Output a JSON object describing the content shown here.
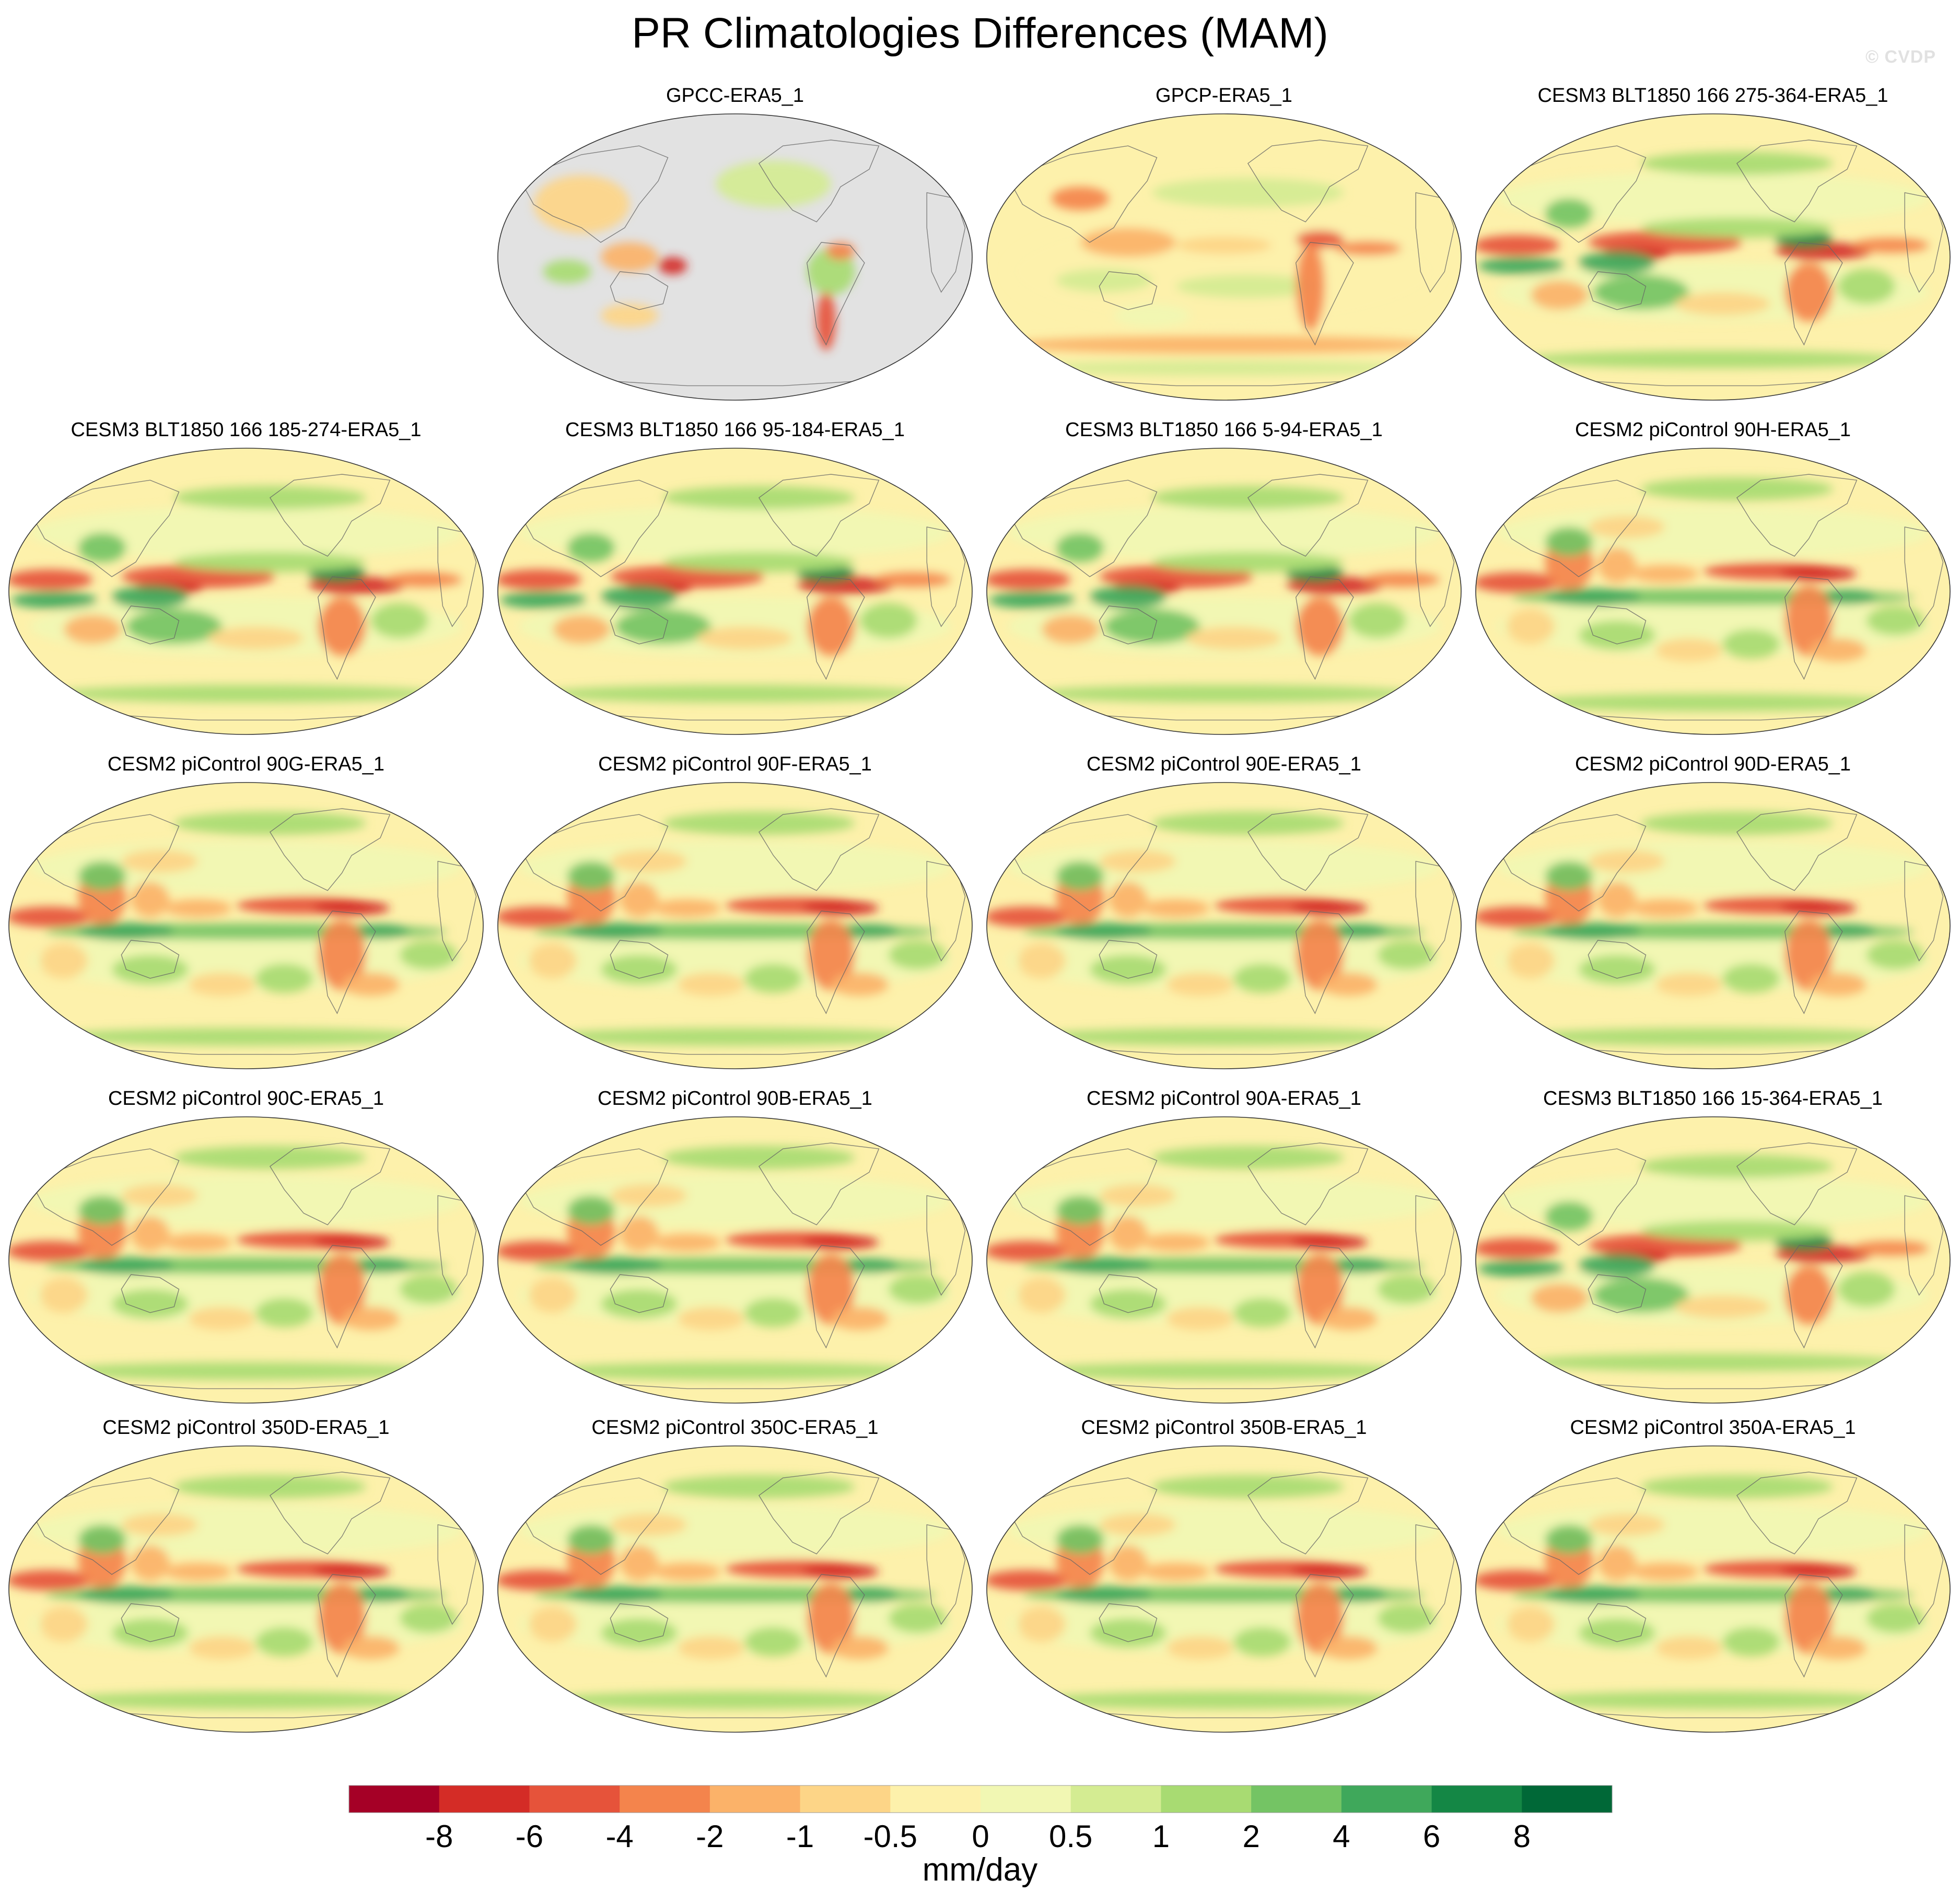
{
  "title": "PR Climatologies Differences (MAM)",
  "watermark": "© CVDP",
  "chart_data": {
    "type": "heatmap",
    "projection": "Robinson (Pacific-centered)",
    "season": "MAM",
    "variable": "PR",
    "units": "mm/day",
    "colorbar": {
      "label": "mm/day",
      "levels": [
        -8,
        -6,
        -4,
        -2,
        -1,
        -0.5,
        0,
        0.5,
        1,
        2,
        4,
        6,
        8
      ],
      "tick_labels": [
        "-8",
        "-6",
        "-4",
        "-2",
        "-1",
        "-0.5",
        "0",
        "0.5",
        "1",
        "2",
        "4",
        "6",
        "8"
      ],
      "colors": [
        "#a50026",
        "#d42c26",
        "#e6533a",
        "#f4844c",
        "#fbb269",
        "#fdd587",
        "#fdf1ab",
        "#f1f7b3",
        "#d4ec92",
        "#a8db72",
        "#74c464",
        "#3fa85b",
        "#148745",
        "#006837"
      ]
    },
    "panels": [
      {
        "title": "GPCC-ERA5_1",
        "kind": "land"
      },
      {
        "title": "GPCP-ERA5_1",
        "kind": "obs"
      },
      {
        "title": "CESM3 BLT1850 166 275-364-ERA5_1",
        "kind": "cesm3"
      },
      {
        "title": "CESM3 BLT1850 166 185-274-ERA5_1",
        "kind": "cesm3"
      },
      {
        "title": "CESM3 BLT1850 166 95-184-ERA5_1",
        "kind": "cesm3"
      },
      {
        "title": "CESM3 BLT1850 166 5-94-ERA5_1",
        "kind": "cesm3"
      },
      {
        "title": "CESM2 piControl 90H-ERA5_1",
        "kind": "cesm2"
      },
      {
        "title": "CESM2 piControl 90G-ERA5_1",
        "kind": "cesm2"
      },
      {
        "title": "CESM2 piControl 90F-ERA5_1",
        "kind": "cesm2"
      },
      {
        "title": "CESM2 piControl 90E-ERA5_1",
        "kind": "cesm2"
      },
      {
        "title": "CESM2 piControl 90D-ERA5_1",
        "kind": "cesm2"
      },
      {
        "title": "CESM2 piControl 90C-ERA5_1",
        "kind": "cesm2"
      },
      {
        "title": "CESM2 piControl 90B-ERA5_1",
        "kind": "cesm2"
      },
      {
        "title": "CESM2 piControl 90A-ERA5_1",
        "kind": "cesm2"
      },
      {
        "title": "CESM3 BLT1850 166 15-364-ERA5_1",
        "kind": "cesm3"
      },
      {
        "title": "CESM2 piControl 350D-ERA5_1",
        "kind": "cesm2"
      },
      {
        "title": "CESM2 piControl 350C-ERA5_1",
        "kind": "cesm2"
      },
      {
        "title": "CESM2 piControl 350B-ERA5_1",
        "kind": "cesm2"
      },
      {
        "title": "CESM2 piControl 350A-ERA5_1",
        "kind": "cesm2"
      }
    ]
  }
}
